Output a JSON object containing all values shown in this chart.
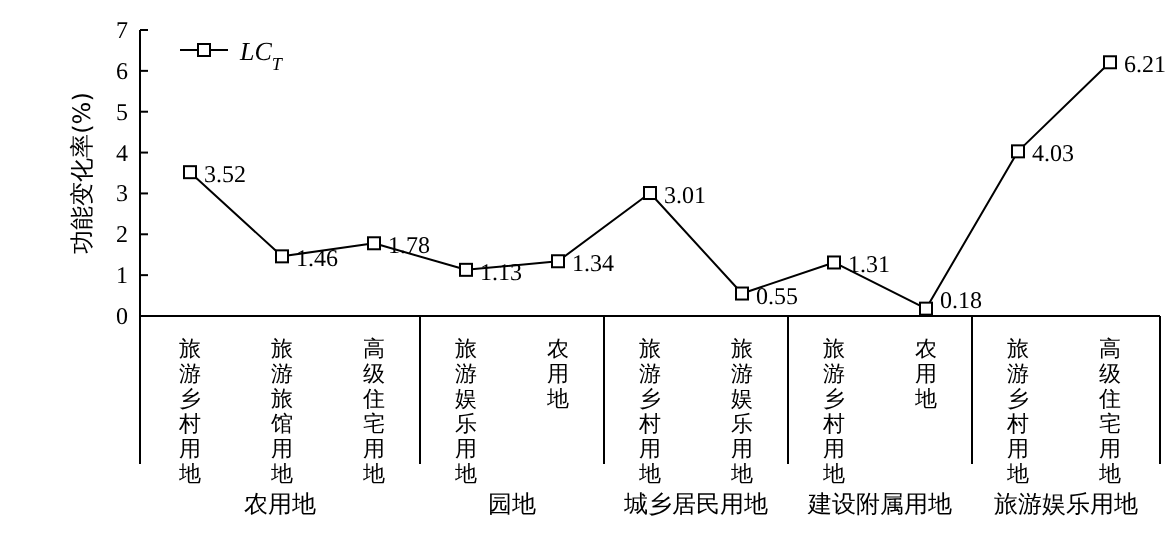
{
  "chart_data": {
    "type": "line",
    "ylabel": "功能变化率(%)",
    "ylim": [
      0,
      7
    ],
    "yticks": [
      0,
      1,
      2,
      3,
      4,
      5,
      6,
      7
    ],
    "categories": [
      "旅游乡村用地",
      "旅游旅馆用地",
      "高级住宅用地",
      "旅游娱乐用地",
      "农用地",
      "旅游乡村用地",
      "旅游娱乐用地",
      "旅游乡村用地",
      "农用地",
      "旅游乡村用地",
      "高级住宅用地"
    ],
    "series": [
      {
        "name": "LC$_{T}$",
        "color": "#000000",
        "values": [
          3.52,
          1.46,
          1.78,
          1.13,
          1.34,
          3.01,
          0.55,
          1.31,
          0.18,
          4.03,
          6.21
        ]
      }
    ],
    "annotations": [
      "农用地",
      "园地",
      "城乡居民用地",
      "建设附属用地",
      "旅游娱乐用地"
    ],
    "data_labels": true,
    "marker": "square",
    "legend": "top left",
    "grid": false
  }
}
